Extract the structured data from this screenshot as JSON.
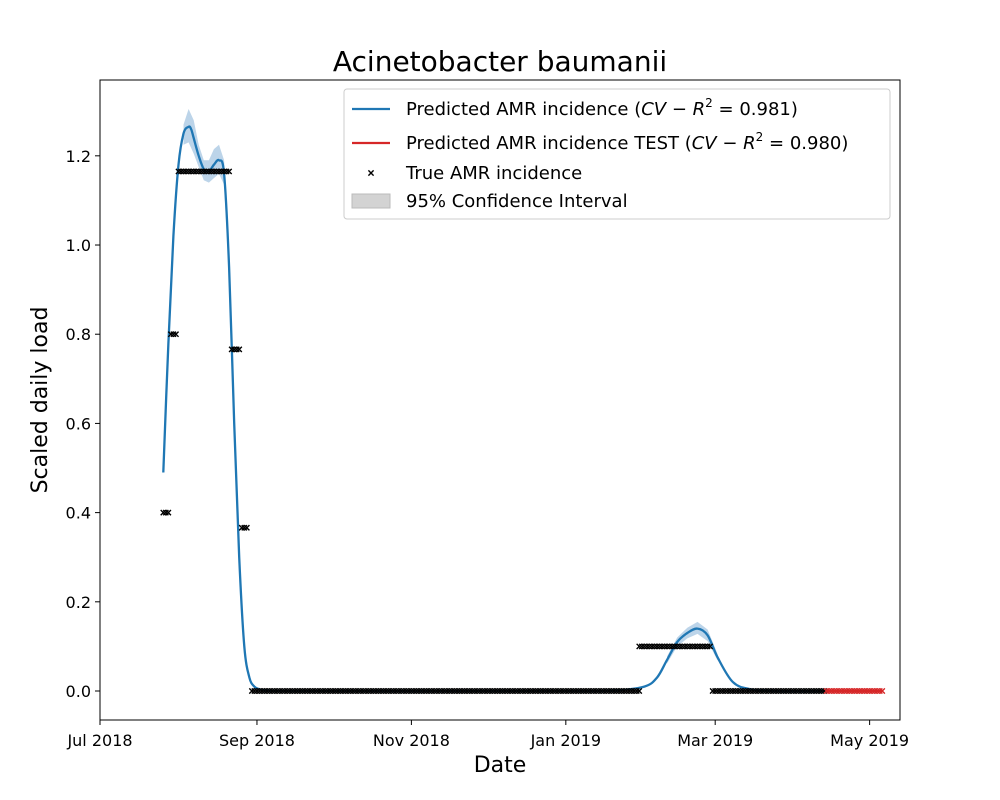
{
  "chart_data": {
    "type": "line",
    "title": "Acinetobacter baumanii",
    "xlabel": "Date",
    "ylabel": "Scaled daily load",
    "ylim": [
      -0.065,
      1.37
    ],
    "xlim": [
      "2018-07-01",
      "2019-05-13"
    ],
    "x_ticks": [
      {
        "date": "2018-07-01",
        "label": "Jul 2018"
      },
      {
        "date": "2018-09-01",
        "label": "Sep 2018"
      },
      {
        "date": "2018-11-01",
        "label": "Nov 2018"
      },
      {
        "date": "2019-01-01",
        "label": "Jan 2019"
      },
      {
        "date": "2019-03-01",
        "label": "Mar 2019"
      },
      {
        "date": "2019-05-01",
        "label": "May 2019"
      }
    ],
    "y_ticks": [
      {
        "value": 0.0,
        "label": "0.0"
      },
      {
        "value": 0.2,
        "label": "0.2"
      },
      {
        "value": 0.4,
        "label": "0.4"
      },
      {
        "value": 0.6,
        "label": "0.6"
      },
      {
        "value": 0.8,
        "label": "0.8"
      },
      {
        "value": 1.0,
        "label": "1.0"
      },
      {
        "value": 1.2,
        "label": "1.2"
      }
    ],
    "grid": false,
    "legend_position": "top-right",
    "legend": [
      {
        "kind": "line",
        "color": "#1f77b4",
        "label": "Predicted AMR incidence (",
        "math": "CV − R",
        "sup": "2",
        "tail": " = 0.981)"
      },
      {
        "kind": "line",
        "color": "#d62728",
        "label": "Predicted AMR incidence TEST (",
        "math": "CV − R",
        "sup": "2",
        "tail": " = 0.980)"
      },
      {
        "kind": "marker",
        "color": "#000000",
        "label": "True AMR incidence",
        "math": "",
        "sup": "",
        "tail": ""
      },
      {
        "kind": "patch",
        "color": "#d3d3d3",
        "label": "95% Confidence Interval",
        "math": "",
        "sup": "",
        "tail": ""
      }
    ],
    "series": [
      {
        "name": "Predicted AMR incidence",
        "kind": "line",
        "color": "#1f77b4",
        "x": [
          "2018-07-26",
          "2018-07-28",
          "2018-07-30",
          "2018-08-01",
          "2018-08-03",
          "2018-08-05",
          "2018-08-06",
          "2018-08-07",
          "2018-08-09",
          "2018-08-11",
          "2018-08-13",
          "2018-08-15",
          "2018-08-17",
          "2018-08-19",
          "2018-08-21",
          "2018-08-23",
          "2018-08-25",
          "2018-08-27",
          "2018-08-29",
          "2018-08-31",
          "2018-09-02",
          "2018-09-05",
          "2018-09-10",
          "2018-10-01",
          "2018-11-01",
          "2018-12-01",
          "2019-01-01",
          "2019-01-20",
          "2019-02-01",
          "2019-02-06",
          "2019-02-10",
          "2019-02-14",
          "2019-02-18",
          "2019-02-22",
          "2019-02-26",
          "2019-03-02",
          "2019-03-08",
          "2019-03-15",
          "2019-03-25",
          "2019-04-15"
        ],
        "y": [
          0.49,
          0.78,
          1.02,
          1.18,
          1.25,
          1.265,
          1.26,
          1.24,
          1.2,
          1.17,
          1.165,
          1.18,
          1.19,
          1.16,
          0.95,
          0.6,
          0.3,
          0.1,
          0.03,
          0.01,
          0.004,
          0.001,
          0.0,
          0.0,
          0.0,
          0.0,
          0.0,
          0.001,
          0.01,
          0.03,
          0.07,
          0.11,
          0.13,
          0.14,
          0.125,
          0.075,
          0.02,
          0.004,
          0.0,
          0.0
        ]
      },
      {
        "name": "Predicted AMR incidence TEST",
        "kind": "line",
        "color": "#d62728",
        "x": [
          "2019-04-14",
          "2019-05-06"
        ],
        "y": [
          0.0,
          0.0
        ]
      },
      {
        "name": "95% Confidence Interval",
        "kind": "band",
        "color": "#a6c6e2",
        "x": [
          "2018-08-03",
          "2018-08-05",
          "2018-08-07",
          "2018-08-09",
          "2018-08-11",
          "2018-08-13",
          "2018-08-15",
          "2018-08-17",
          "2018-08-19",
          "2018-08-21",
          "2019-02-10",
          "2019-02-14",
          "2019-02-18",
          "2019-02-22",
          "2019-02-26",
          "2019-03-02"
        ],
        "upper": [
          1.27,
          1.305,
          1.28,
          1.225,
          1.19,
          1.19,
          1.215,
          1.225,
          1.19,
          0.98,
          0.078,
          0.12,
          0.142,
          0.155,
          0.138,
          0.082
        ],
        "lower": [
          1.225,
          1.23,
          1.205,
          1.175,
          1.145,
          1.14,
          1.15,
          1.16,
          1.135,
          0.925,
          0.062,
          0.1,
          0.118,
          0.128,
          0.112,
          0.068
        ]
      },
      {
        "name": "True AMR incidence",
        "kind": "scatter",
        "color": "#000000",
        "segments": [
          {
            "from": "2018-07-26",
            "to": "2018-07-28",
            "y": 0.4
          },
          {
            "from": "2018-07-29",
            "to": "2018-07-31",
            "y": 0.8
          },
          {
            "from": "2018-08-01",
            "to": "2018-08-21",
            "y": 1.165
          },
          {
            "from": "2018-08-22",
            "to": "2018-08-25",
            "y": 0.766
          },
          {
            "from": "2018-08-26",
            "to": "2018-08-28",
            "y": 0.366
          },
          {
            "from": "2018-08-30",
            "to": "2019-01-30",
            "y": 0.0
          },
          {
            "from": "2019-01-30",
            "to": "2019-02-27",
            "y": 0.1
          },
          {
            "from": "2019-02-28",
            "to": "2019-04-13",
            "y": 0.0
          }
        ]
      },
      {
        "name": "True AMR incidence TEST",
        "kind": "scatter",
        "color": "#d62728",
        "segments": [
          {
            "from": "2019-04-14",
            "to": "2019-05-06",
            "y": 0.0
          }
        ]
      }
    ]
  }
}
